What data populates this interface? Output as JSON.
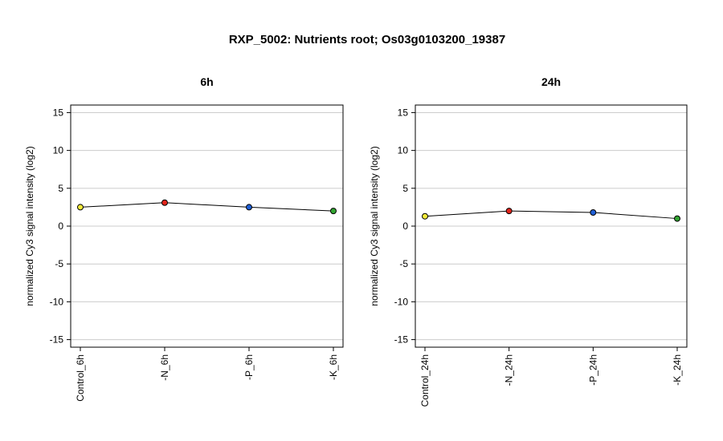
{
  "title": "RXP_5002: Nutrients root; Os03g0103200_19387",
  "chart_data": [
    {
      "type": "line",
      "title": "6h",
      "ylabel": "normalized Cy3 signal intensity (log2)",
      "xlabel": "",
      "categories": [
        "Control_6h",
        "-N_6h",
        "-P_6h",
        "-K_6h"
      ],
      "values": [
        2.5,
        3.1,
        2.5,
        2.0
      ],
      "point_colors": [
        "#f2ea3a",
        "#e2241b",
        "#1f5fd6",
        "#33a532"
      ],
      "ylim": [
        -16,
        16
      ],
      "yticks": [
        -15,
        -10,
        -5,
        0,
        5,
        10,
        15
      ],
      "grid": true
    },
    {
      "type": "line",
      "title": "24h",
      "ylabel": "normalized Cy3 signal intensity (log2)",
      "xlabel": "",
      "categories": [
        "Control_24h",
        "-N_24h",
        "-P_24h",
        "-K_24h"
      ],
      "values": [
        1.3,
        2.0,
        1.8,
        1.0
      ],
      "point_colors": [
        "#f2ea3a",
        "#e2241b",
        "#1f5fd6",
        "#33a532"
      ],
      "ylim": [
        -16,
        16
      ],
      "yticks": [
        -15,
        -10,
        -5,
        0,
        5,
        10,
        15
      ],
      "grid": true
    }
  ]
}
